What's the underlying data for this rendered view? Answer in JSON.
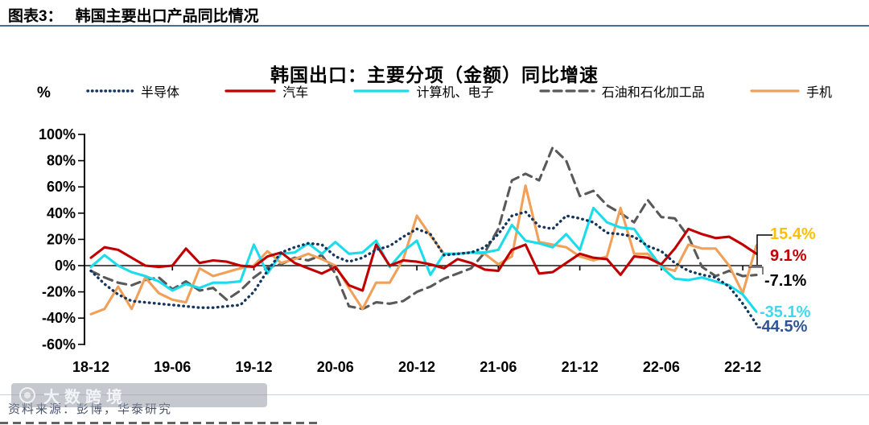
{
  "header": {
    "tag": "图表3：",
    "title": "韩国主要出口产品同比情况"
  },
  "chart_data": {
    "type": "line",
    "title": "韩国出口：主要分项（金额）同比增速",
    "y_axis_unit": "%",
    "ylim": [
      -60,
      100
    ],
    "y_tick_step": 20,
    "grid": false,
    "legend_position": "top",
    "y_tick_labels": [
      "100%",
      "80%",
      "60%",
      "40%",
      "20%",
      "0%",
      "-20%",
      "-40%",
      "-60%"
    ],
    "x_tick_labels": [
      "18-12",
      "19-06",
      "19-12",
      "20-06",
      "20-12",
      "21-06",
      "21-12",
      "22-06",
      "22-12"
    ],
    "x": [
      "18-12",
      "19-01",
      "19-02",
      "19-03",
      "19-04",
      "19-05",
      "19-06",
      "19-07",
      "19-08",
      "19-09",
      "19-10",
      "19-11",
      "19-12",
      "20-01",
      "20-02",
      "20-03",
      "20-04",
      "20-05",
      "20-06",
      "20-07",
      "20-08",
      "20-09",
      "20-10",
      "20-11",
      "20-12",
      "21-01",
      "21-02",
      "21-03",
      "21-04",
      "21-05",
      "21-06",
      "21-07",
      "21-08",
      "21-09",
      "21-10",
      "21-11",
      "21-12",
      "22-01",
      "22-02",
      "22-03",
      "22-04",
      "22-05",
      "22-06",
      "22-07",
      "22-08",
      "22-09",
      "22-10",
      "22-11",
      "22-12",
      "23-01"
    ],
    "series": [
      {
        "name": "半导体",
        "color": "#17365D",
        "style": "dotted",
        "end_label": "-44.5%",
        "end_label_color": "#2F5496",
        "values": [
          -4,
          -14,
          -22,
          -27,
          -28,
          -29,
          -30,
          -31,
          -32,
          -32,
          -31,
          -30,
          -20,
          -4,
          10,
          14,
          17,
          16,
          7,
          3,
          6,
          12,
          15,
          22,
          28,
          24,
          8,
          9,
          10,
          14,
          24,
          38,
          41,
          30,
          28,
          38,
          36,
          33,
          25,
          24,
          22,
          15,
          11,
          2,
          -4,
          -7,
          -9,
          -16,
          -29,
          -44.5
        ]
      },
      {
        "name": "汽车",
        "color": "#C00000",
        "style": "solid",
        "end_label": "9.1%",
        "end_label_color": "#C00000",
        "values": [
          6,
          14,
          12,
          6,
          0,
          -1,
          0,
          13,
          2,
          4,
          3,
          0,
          -1,
          7,
          10,
          2,
          -2,
          -6,
          -1,
          -15,
          -19,
          16,
          0,
          4,
          3,
          1,
          -2,
          5,
          2,
          -3,
          -4,
          12,
          16,
          -6,
          -5,
          2,
          9,
          6,
          5,
          -7,
          7,
          6,
          1,
          13,
          28,
          24,
          21,
          22,
          16,
          9.1
        ]
      },
      {
        "name": "计算机、电子",
        "color": "#1CDCEC",
        "style": "solid",
        "end_label": "-35.1%",
        "end_label_color": "#3FD9EC",
        "values": [
          -1,
          8,
          0,
          -5,
          -8,
          -12,
          -19,
          -14,
          -17,
          -13,
          -13,
          -12,
          16,
          -6,
          9,
          10,
          17,
          9,
          18,
          9,
          10,
          19,
          -1,
          11,
          19,
          -7,
          9,
          9,
          10,
          10,
          12,
          31,
          19,
          17,
          14,
          24,
          12,
          44,
          33,
          29,
          28,
          13,
          -1,
          -10,
          -11,
          -9,
          -12,
          -15,
          -22,
          -35.1
        ]
      },
      {
        "name": "石油和石化加工品",
        "color": "#595959",
        "style": "dashed",
        "end_label": "-7.1%",
        "end_label_color": "#000000",
        "values": [
          -4,
          -9,
          -13,
          -15,
          -11,
          -9,
          -18,
          -12,
          -19,
          -17,
          -26,
          -19,
          -9,
          -1.5,
          1,
          6,
          4,
          8,
          -6,
          -31,
          -33,
          -28,
          -29,
          -27,
          -20,
          -16,
          -10,
          -6,
          -2,
          10,
          28,
          65,
          70,
          65,
          90,
          80,
          53,
          57,
          46,
          40,
          33,
          50,
          37,
          36,
          22,
          -1,
          -8,
          -4,
          -8,
          -7.1
        ]
      },
      {
        "name": "手机",
        "color": "#F0A058",
        "style": "solid",
        "end_label": "15.4%",
        "end_label_color": "#FFC000",
        "values": [
          -37,
          -33,
          -16,
          -33,
          -9,
          -21,
          -26,
          -28,
          -2,
          -8,
          -5,
          -2,
          0,
          11,
          2,
          5,
          9,
          5,
          0,
          -17,
          -33,
          -13,
          -13,
          5,
          38,
          23,
          9,
          9,
          10,
          9,
          1,
          7,
          61,
          18,
          16,
          14,
          7,
          4,
          7,
          44,
          9,
          9,
          -1,
          -4,
          16,
          13,
          13,
          0,
          -21,
          15.4
        ]
      }
    ]
  },
  "footer": {
    "source": "资料来源：彭博，华泰研究",
    "watermark": "大数跨境"
  }
}
